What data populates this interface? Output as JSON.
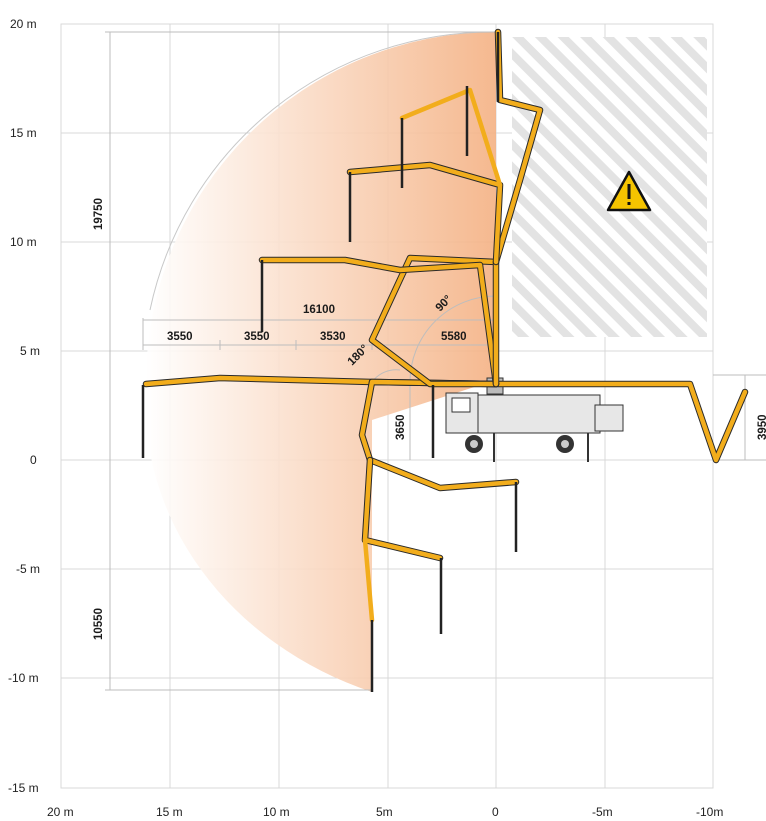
{
  "y_axis_labels": [
    "20 m",
    "15 m",
    "10 m",
    "5 m",
    "0",
    "-5 m",
    "-10 m",
    "-15 m"
  ],
  "x_axis_labels": [
    "20 m",
    "15 m",
    "10 m",
    "5m",
    "0",
    "-5m",
    "-10m"
  ],
  "dimensions": {
    "total_height": "19750",
    "depth": "10550",
    "reach": "16100",
    "seg1": "3550",
    "seg2": "3550",
    "seg3": "3530",
    "seg4": "5580",
    "unfold_height": "3650",
    "right_height": "3950"
  },
  "angles": {
    "a90": "90°",
    "a180": "180°"
  },
  "warning_icon": "warning-triangle-icon",
  "colors": {
    "boom": "#f2ad1c",
    "reach_area": "#f5b98a",
    "grid": "#d9d9d9",
    "warning": "#f5c400"
  }
}
